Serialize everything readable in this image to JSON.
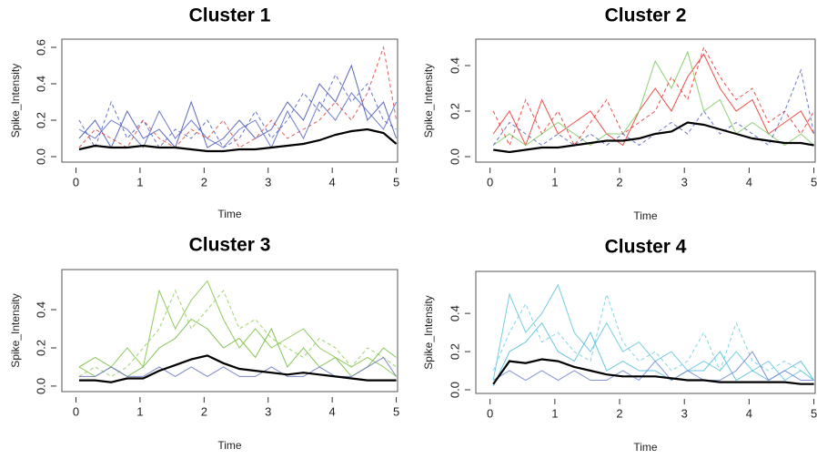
{
  "chart_data": [
    {
      "type": "line",
      "title": "Cluster 1",
      "x_label": "Time",
      "y_label": "Spike_Intensity",
      "x": [
        0.05,
        0.3,
        0.55,
        0.8,
        1.05,
        1.3,
        1.55,
        1.8,
        2.05,
        2.3,
        2.55,
        2.8,
        3.05,
        3.3,
        3.55,
        3.8,
        4.05,
        4.3,
        4.55,
        4.8,
        5.0
      ],
      "xlim": [
        -0.22,
        5.02
      ],
      "ylim": [
        -0.03,
        0.645
      ],
      "xticks": [
        0,
        1,
        2,
        3,
        4,
        5
      ],
      "yticks": [
        {
          "value": 0,
          "label": "0.0"
        },
        0.2,
        0.4,
        0.6
      ],
      "series": [
        {
          "color": "#3f4fb0",
          "values": [
            0.1,
            0.2,
            0.05,
            0.25,
            0.1,
            0.15,
            0.05,
            0.3,
            0.05,
            0.1,
            0.2,
            0.1,
            0.15,
            0.3,
            0.2,
            0.4,
            0.3,
            0.5,
            0.2,
            0.3,
            0.1
          ]
        },
        {
          "color": "#4a5cc4",
          "dashed": true,
          "values": [
            0.2,
            0.05,
            0.3,
            0.1,
            0.2,
            0.05,
            0.15,
            0.1,
            0.2,
            0.05,
            0.1,
            0.25,
            0.1,
            0.2,
            0.35,
            0.25,
            0.45,
            0.3,
            0.4,
            0.2,
            0.15
          ]
        },
        {
          "color": "#e0403a",
          "dashed": true,
          "values": [
            0.05,
            0.15,
            0.1,
            0.05,
            0.2,
            0.1,
            0.05,
            0.15,
            0.1,
            0.2,
            0.05,
            0.1,
            0.2,
            0.1,
            0.15,
            0.2,
            0.3,
            0.2,
            0.35,
            0.6,
            0.2
          ]
        },
        {
          "color": "#5565c8",
          "values": [
            0.15,
            0.1,
            0.2,
            0.15,
            0.05,
            0.25,
            0.1,
            0.2,
            0.1,
            0.05,
            0.15,
            0.2,
            0.05,
            0.25,
            0.1,
            0.3,
            0.2,
            0.35,
            0.25,
            0.15,
            0.3
          ]
        },
        {
          "color": "#000000",
          "mean": true,
          "values": [
            0.04,
            0.06,
            0.05,
            0.05,
            0.06,
            0.05,
            0.05,
            0.04,
            0.03,
            0.03,
            0.04,
            0.04,
            0.05,
            0.06,
            0.07,
            0.09,
            0.12,
            0.14,
            0.15,
            0.13,
            0.07
          ]
        }
      ]
    },
    {
      "type": "line",
      "title": "Cluster 2",
      "x_label": "Time",
      "y_label": "Spike_Intensity",
      "x": [
        0.05,
        0.3,
        0.55,
        0.8,
        1.05,
        1.3,
        1.55,
        1.8,
        2.05,
        2.3,
        2.55,
        2.8,
        3.05,
        3.3,
        3.55,
        3.8,
        4.05,
        4.3,
        4.55,
        4.8,
        5.0
      ],
      "xlim": [
        -0.22,
        5.02
      ],
      "ylim": [
        -0.024,
        0.516
      ],
      "xticks": [
        0,
        1,
        2,
        3,
        4,
        5
      ],
      "yticks": [
        {
          "value": 0,
          "label": "0.0"
        },
        0.2,
        0.4
      ],
      "series": [
        {
          "color": "#e8302a",
          "values": [
            0.1,
            0.2,
            0.05,
            0.25,
            0.1,
            0.15,
            0.2,
            0.1,
            0.05,
            0.2,
            0.3,
            0.2,
            0.35,
            0.45,
            0.3,
            0.2,
            0.25,
            0.1,
            0.15,
            0.2,
            0.1
          ]
        },
        {
          "color": "#7ac95a",
          "values": [
            0.05,
            0.1,
            0.05,
            0.1,
            0.15,
            0.1,
            0.05,
            0.1,
            0.1,
            0.2,
            0.42,
            0.3,
            0.46,
            0.2,
            0.25,
            0.1,
            0.15,
            0.1,
            0.05,
            0.1,
            0.05
          ]
        },
        {
          "color": "#e8302a",
          "dashed": true,
          "values": [
            0.2,
            0.05,
            0.25,
            0.1,
            0.2,
            0.05,
            0.15,
            0.25,
            0.1,
            0.15,
            0.2,
            0.35,
            0.25,
            0.48,
            0.35,
            0.25,
            0.3,
            0.15,
            0.2,
            0.1,
            0.2
          ]
        },
        {
          "color": "#5060c0",
          "dashed": true,
          "values": [
            0.05,
            0.15,
            0.1,
            0.05,
            0.1,
            0.05,
            0.1,
            0.05,
            0.1,
            0.05,
            0.1,
            0.15,
            0.1,
            0.2,
            0.1,
            0.15,
            0.1,
            0.05,
            0.2,
            0.38,
            0.1
          ]
        },
        {
          "color": "#000000",
          "mean": true,
          "values": [
            0.03,
            0.02,
            0.03,
            0.04,
            0.04,
            0.05,
            0.06,
            0.07,
            0.07,
            0.08,
            0.1,
            0.11,
            0.15,
            0.14,
            0.12,
            0.1,
            0.08,
            0.07,
            0.06,
            0.06,
            0.05
          ]
        }
      ]
    },
    {
      "type": "line",
      "title": "Cluster 3",
      "x_label": "Time",
      "y_label": "Spike_Intensity",
      "x": [
        0.05,
        0.3,
        0.55,
        0.8,
        1.05,
        1.3,
        1.55,
        1.8,
        2.05,
        2.3,
        2.55,
        2.8,
        3.05,
        3.3,
        3.55,
        3.8,
        4.05,
        4.3,
        4.55,
        4.8,
        5.0
      ],
      "xlim": [
        -0.22,
        5.02
      ],
      "ylim": [
        -0.029,
        0.61
      ],
      "xticks": [
        0,
        1,
        2,
        3,
        4,
        5
      ],
      "yticks": [
        {
          "value": 0,
          "label": "0.0"
        },
        0.2,
        0.4
      ],
      "series": [
        {
          "color": "#7cc242",
          "values": [
            0.1,
            0.05,
            0.1,
            0.2,
            0.1,
            0.5,
            0.3,
            0.45,
            0.55,
            0.35,
            0.2,
            0.3,
            0.2,
            0.25,
            0.3,
            0.2,
            0.15,
            0.1,
            0.15,
            0.1,
            0.05
          ]
        },
        {
          "color": "#8ccc55",
          "dashed": true,
          "values": [
            0.05,
            0.1,
            0.05,
            0.1,
            0.2,
            0.3,
            0.5,
            0.3,
            0.4,
            0.5,
            0.3,
            0.35,
            0.25,
            0.2,
            0.15,
            0.25,
            0.2,
            0.1,
            0.2,
            0.15,
            0.1
          ]
        },
        {
          "color": "#6fb838",
          "values": [
            0.1,
            0.15,
            0.1,
            0.05,
            0.1,
            0.2,
            0.25,
            0.35,
            0.3,
            0.2,
            0.25,
            0.15,
            0.3,
            0.1,
            0.2,
            0.1,
            0.15,
            0.05,
            0.1,
            0.2,
            0.15
          ]
        },
        {
          "color": "#6070c0",
          "values": [
            0.05,
            0.05,
            0.1,
            0.05,
            0.05,
            0.1,
            0.05,
            0.1,
            0.05,
            0.1,
            0.05,
            0.05,
            0.1,
            0.05,
            0.05,
            0.1,
            0.05,
            0.05,
            0.1,
            0.15,
            0.05
          ]
        },
        {
          "color": "#000000",
          "mean": true,
          "values": [
            0.03,
            0.03,
            0.02,
            0.04,
            0.04,
            0.08,
            0.11,
            0.14,
            0.16,
            0.12,
            0.09,
            0.08,
            0.07,
            0.06,
            0.07,
            0.06,
            0.05,
            0.04,
            0.03,
            0.03,
            0.03
          ]
        }
      ]
    },
    {
      "type": "line",
      "title": "Cluster 4",
      "x_label": "Time",
      "y_label": "Spike_Intensity",
      "x": [
        0.05,
        0.3,
        0.55,
        0.8,
        1.05,
        1.3,
        1.55,
        1.8,
        2.05,
        2.3,
        2.55,
        2.8,
        3.05,
        3.3,
        3.55,
        3.8,
        4.05,
        4.3,
        4.55,
        4.8,
        5.0
      ],
      "xlim": [
        -0.22,
        5.02
      ],
      "ylim": [
        -0.019,
        0.62
      ],
      "xticks": [
        0,
        1,
        2,
        3,
        4,
        5
      ],
      "yticks": [
        {
          "value": 0,
          "label": "0.0"
        },
        0.2,
        0.4
      ],
      "series": [
        {
          "color": "#5bc4dd",
          "values": [
            0.05,
            0.5,
            0.3,
            0.4,
            0.55,
            0.3,
            0.2,
            0.35,
            0.2,
            0.25,
            0.15,
            0.2,
            0.1,
            0.15,
            0.1,
            0.2,
            0.1,
            0.15,
            0.05,
            0.1,
            0.05
          ]
        },
        {
          "color": "#6ccbe2",
          "dashed": true,
          "values": [
            0.1,
            0.3,
            0.45,
            0.25,
            0.3,
            0.2,
            0.15,
            0.5,
            0.25,
            0.15,
            0.2,
            0.1,
            0.15,
            0.3,
            0.1,
            0.35,
            0.15,
            0.1,
            0.15,
            0.1,
            0.05
          ]
        },
        {
          "color": "#4fbcd8",
          "values": [
            0.02,
            0.2,
            0.25,
            0.35,
            0.2,
            0.15,
            0.3,
            0.1,
            0.15,
            0.1,
            0.1,
            0.05,
            0.1,
            0.1,
            0.2,
            0.05,
            0.1,
            0.05,
            0.1,
            0.15,
            0.05
          ]
        },
        {
          "color": "#6a7fd0",
          "values": [
            0.05,
            0.1,
            0.05,
            0.1,
            0.05,
            0.1,
            0.05,
            0.05,
            0.1,
            0.05,
            0.15,
            0.05,
            0.1,
            0.05,
            0.05,
            0.1,
            0.2,
            0.05,
            0.1,
            0.05,
            0.05
          ]
        },
        {
          "color": "#000000",
          "mean": true,
          "values": [
            0.03,
            0.15,
            0.14,
            0.16,
            0.15,
            0.12,
            0.1,
            0.08,
            0.07,
            0.07,
            0.07,
            0.06,
            0.05,
            0.05,
            0.04,
            0.04,
            0.04,
            0.04,
            0.04,
            0.03,
            0.03
          ]
        }
      ]
    }
  ]
}
